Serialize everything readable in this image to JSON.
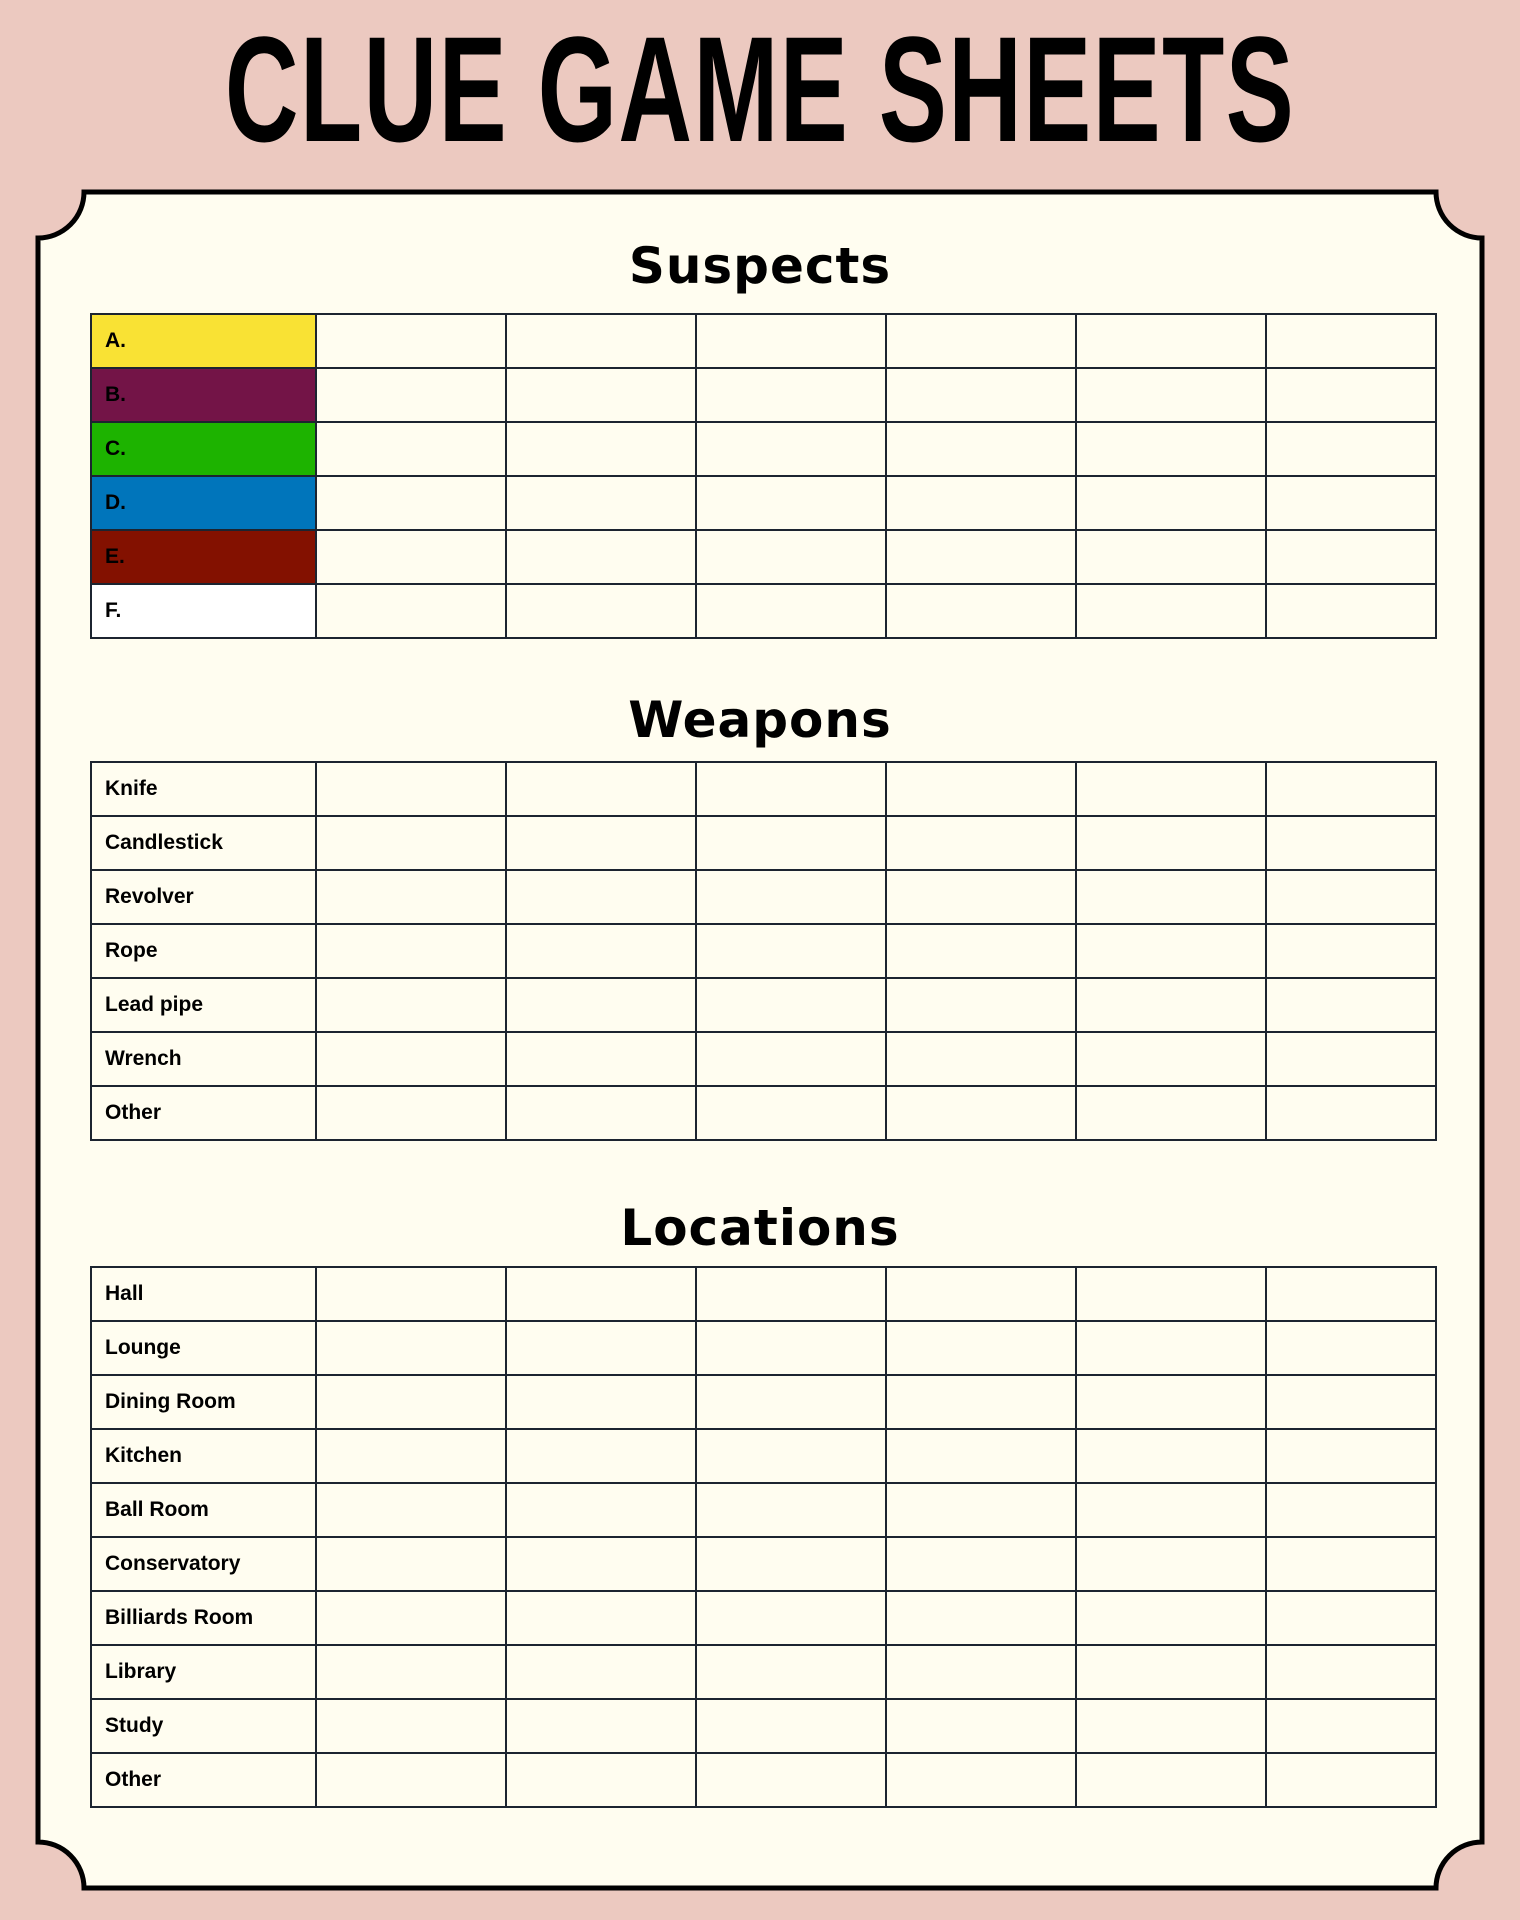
{
  "title": "CLUE GAME SHEETS",
  "colors": {
    "background": "#ecc9c0",
    "paper": "#fffdf0"
  },
  "sections": [
    {
      "heading": "Suspects",
      "rows": [
        {
          "label": "A.",
          "color": "#f9e234"
        },
        {
          "label": "B.",
          "color": "#731447"
        },
        {
          "label": "C.",
          "color": "#1db300"
        },
        {
          "label": "D.",
          "color": "#0075bb"
        },
        {
          "label": "E.",
          "color": "#831100"
        },
        {
          "label": "F.",
          "color": "#ffffff"
        }
      ]
    },
    {
      "heading": "Weapons",
      "rows": [
        {
          "label": "Knife"
        },
        {
          "label": "Candlestick"
        },
        {
          "label": "Revolver"
        },
        {
          "label": "Rope"
        },
        {
          "label": "Lead pipe"
        },
        {
          "label": "Wrench"
        },
        {
          "label": "Other"
        }
      ]
    },
    {
      "heading": "Locations",
      "rows": [
        {
          "label": "Hall"
        },
        {
          "label": "Lounge"
        },
        {
          "label": "Dining Room"
        },
        {
          "label": "Kitchen"
        },
        {
          "label": "Ball Room"
        },
        {
          "label": "Conservatory"
        },
        {
          "label": "Billiards Room"
        },
        {
          "label": "Library"
        },
        {
          "label": "Study"
        },
        {
          "label": "Other"
        }
      ]
    }
  ]
}
